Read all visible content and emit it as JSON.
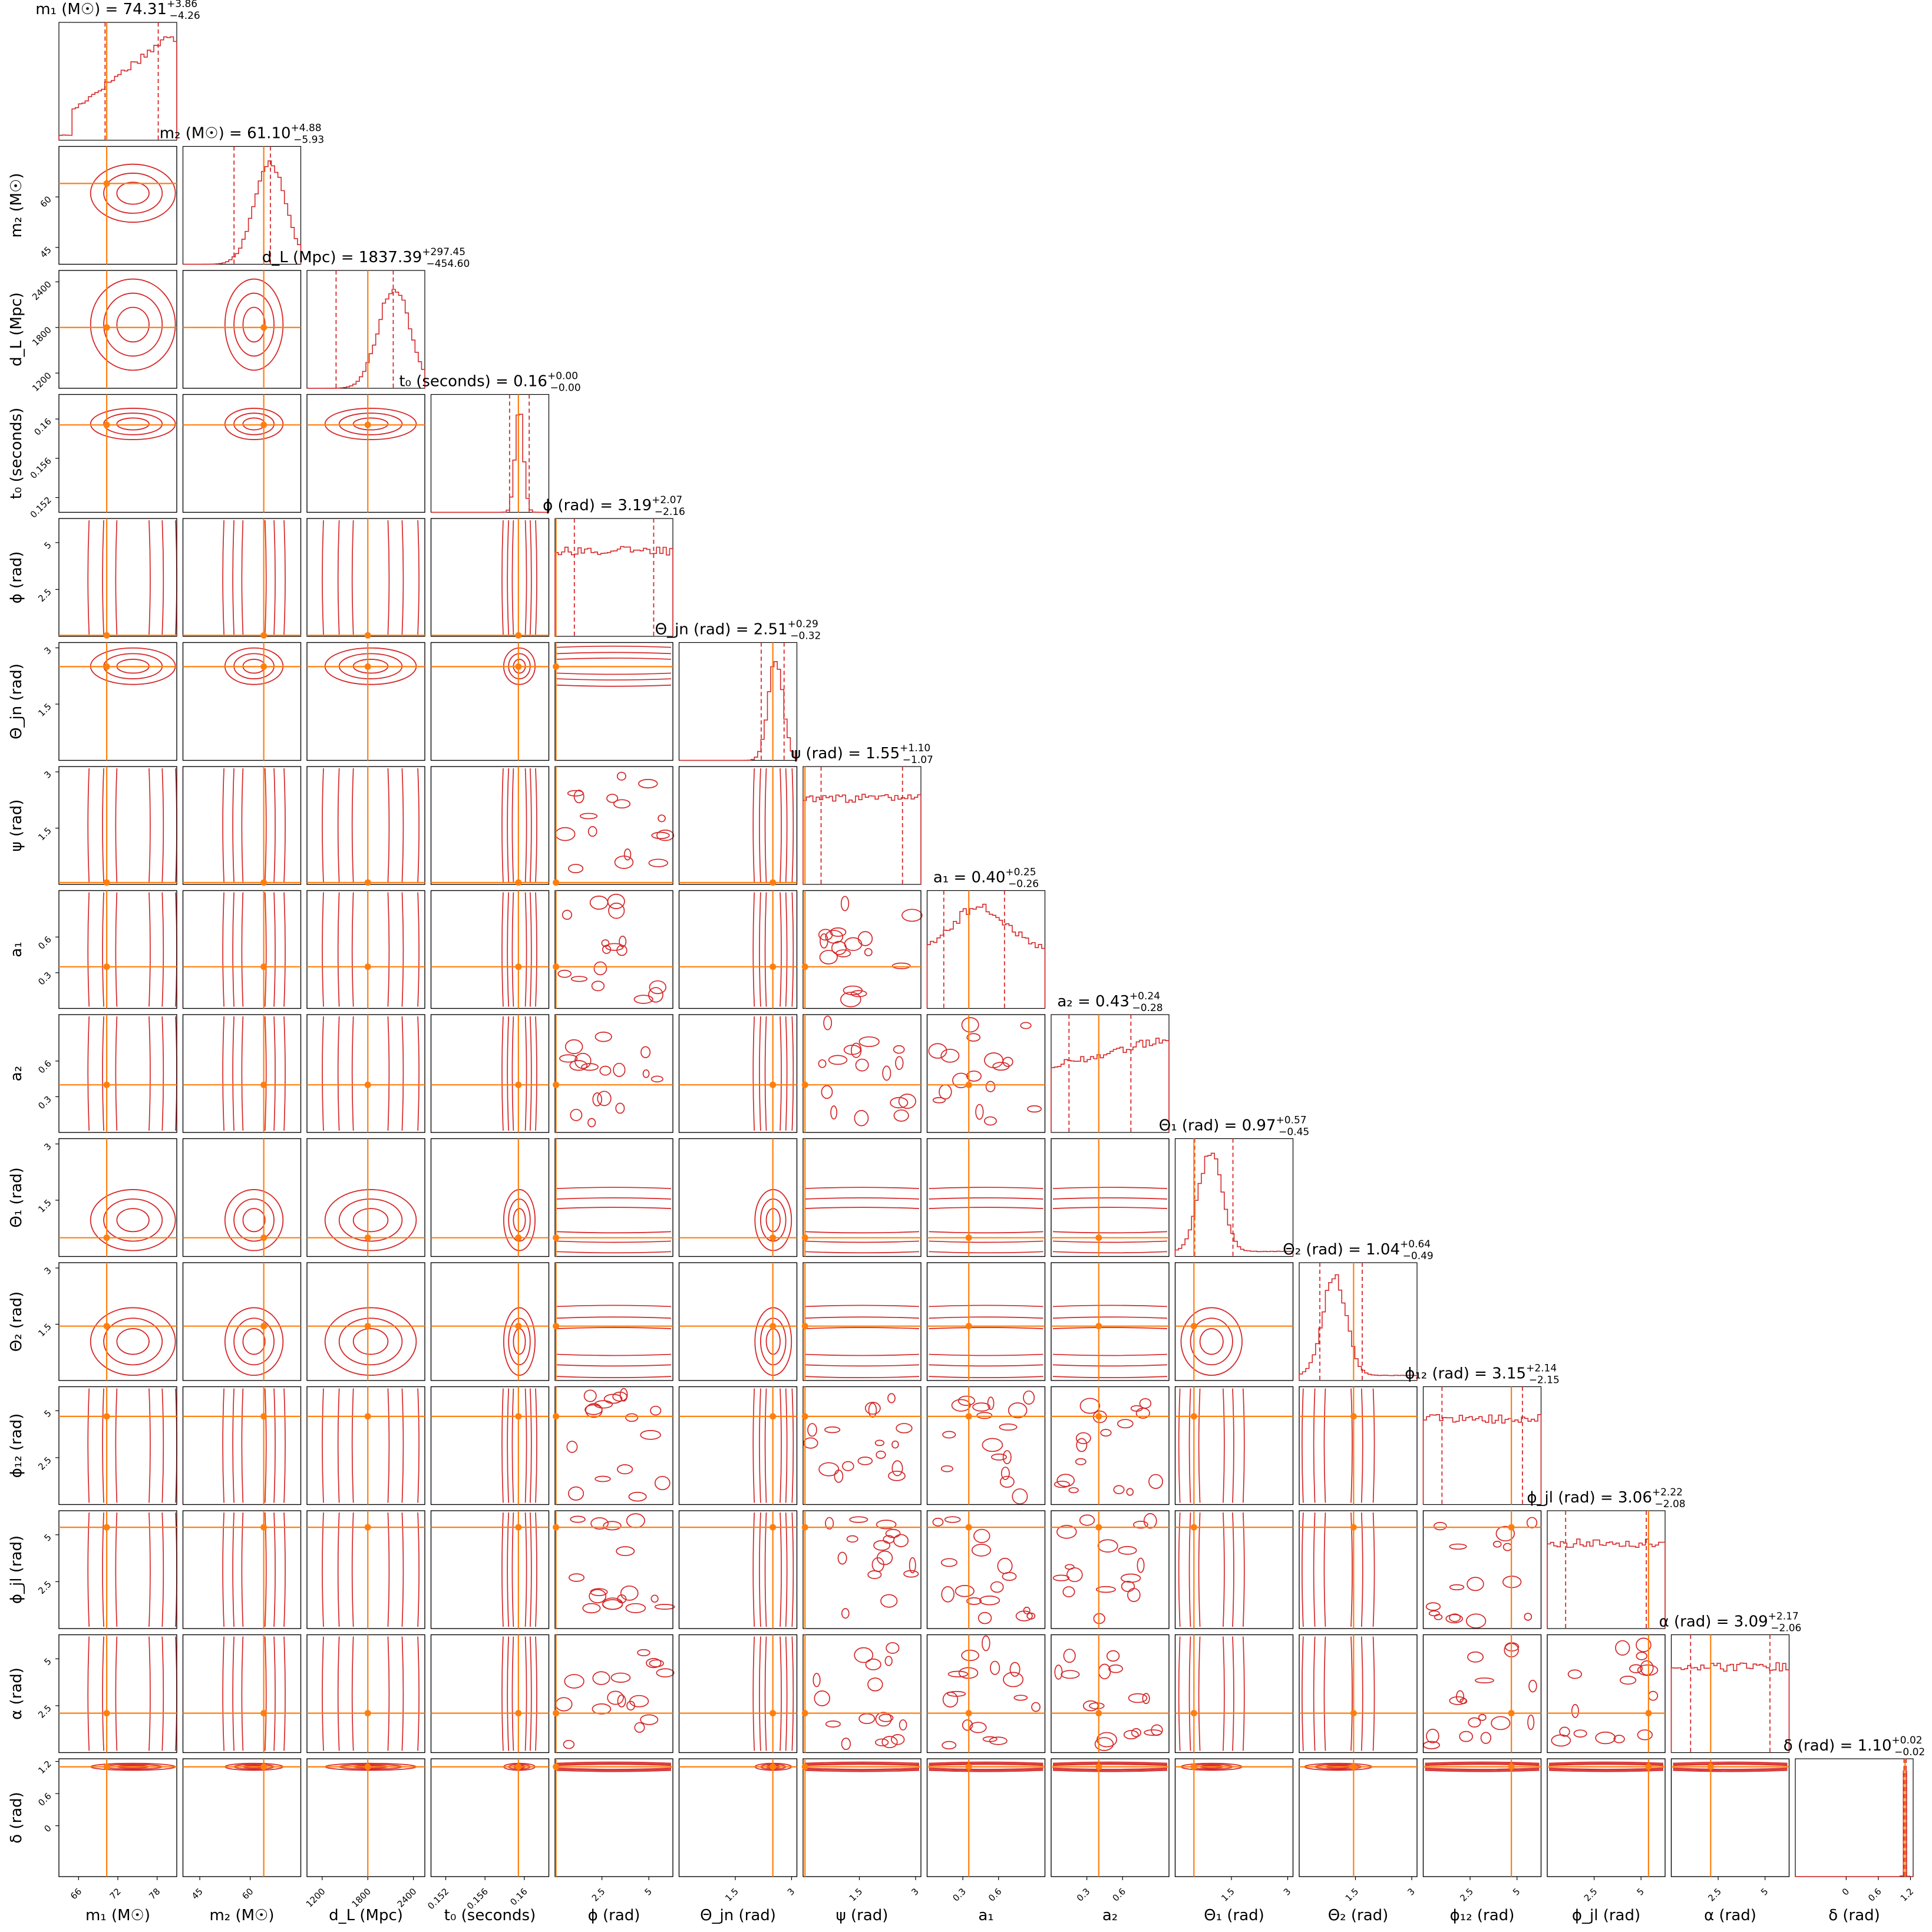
{
  "chart_data": {
    "type": "corner",
    "colors": {
      "posterior": "#d62728",
      "injection": "#ff7f0e",
      "frame": "#000000"
    },
    "parameters": [
      {
        "key": "m1",
        "label": "m₁ (M☉)",
        "title": "m₁ (M☉) = 74.31",
        "plus": "+3.86",
        "minus": "−4.26",
        "range": [
          63,
          81
        ],
        "ticks": [
          66,
          72,
          78
        ],
        "median": 74.31,
        "lo": 70.05,
        "hi": 78.17,
        "injection": 70.3,
        "hist": "rising"
      },
      {
        "key": "m2",
        "label": "m₂ (M☉)",
        "title": "m₂ (M☉) = 61.10",
        "plus": "+4.88",
        "minus": "−5.93",
        "range": [
          40,
          75
        ],
        "ticks": [
          45,
          60
        ],
        "median": 61.1,
        "lo": 55.17,
        "hi": 65.98,
        "injection": 64.0,
        "hist": "peak-right"
      },
      {
        "key": "dL",
        "label": "d_L (Mpc)",
        "title": "d_L (Mpc) = 1837.39",
        "plus": "+297.45",
        "minus": "−454.60",
        "range": [
          1000,
          2550
        ],
        "ticks": [
          1200,
          1800,
          2400
        ],
        "median": 1837.39,
        "lo": 1382.79,
        "hi": 2134.84,
        "injection": 1800,
        "hist": "peak-right"
      },
      {
        "key": "t0",
        "label": "t₀ (seconds)",
        "title": "t₀ (seconds) = 0.16",
        "plus": "+0.00",
        "minus": "−0.00",
        "range": [
          0.1505,
          0.1625
        ],
        "ticks": [
          0.152,
          0.156,
          0.16
        ],
        "median": 0.1595,
        "lo": 0.1585,
        "hi": 0.1605,
        "injection": 0.1594,
        "hist": "narrow"
      },
      {
        "key": "phi",
        "label": "ϕ (rad)",
        "title": "ϕ (rad) = 3.19",
        "plus": "+2.07",
        "minus": "−2.16",
        "range": [
          0,
          6.283
        ],
        "ticks": [
          2.5,
          5.0
        ],
        "median": 3.19,
        "lo": 1.03,
        "hi": 5.26,
        "injection": 0.05,
        "hist": "flat"
      },
      {
        "key": "thetajn",
        "label": "Θ_jn (rad)",
        "title": "Θ_jn (rad) = 2.51",
        "plus": "+0.29",
        "minus": "−0.32",
        "range": [
          0,
          3.1416
        ],
        "ticks": [
          1.5,
          3.0
        ],
        "median": 2.51,
        "lo": 2.19,
        "hi": 2.8,
        "injection": 2.5,
        "hist": "peak-edge"
      },
      {
        "key": "psi",
        "label": "ψ (rad)",
        "title": "ψ (rad) = 1.55",
        "plus": "+1.10",
        "minus": "−1.07",
        "range": [
          0,
          3.1416
        ],
        "ticks": [
          1.5,
          3.0
        ],
        "median": 1.55,
        "lo": 0.48,
        "hi": 2.65,
        "injection": 0.05,
        "hist": "flat"
      },
      {
        "key": "a1",
        "label": "a₁",
        "title": "a₁ = 0.40",
        "plus": "+0.25",
        "minus": "−0.26",
        "range": [
          0,
          0.99
        ],
        "ticks": [
          0.3,
          0.6
        ],
        "median": 0.4,
        "lo": 0.14,
        "hi": 0.65,
        "injection": 0.35,
        "hist": "dome"
      },
      {
        "key": "a2",
        "label": "a₂",
        "title": "a₂ = 0.43",
        "plus": "+0.24",
        "minus": "−0.28",
        "range": [
          0,
          0.99
        ],
        "ticks": [
          0.3,
          0.6
        ],
        "median": 0.43,
        "lo": 0.15,
        "hi": 0.67,
        "injection": 0.4,
        "hist": "rising-slow"
      },
      {
        "key": "theta1",
        "label": "Θ₁ (rad)",
        "title": "Θ₁ (rad) = 0.97",
        "plus": "+0.57",
        "minus": "−0.45",
        "range": [
          0,
          3.1416
        ],
        "ticks": [
          1.5,
          3.0
        ],
        "median": 0.97,
        "lo": 0.52,
        "hi": 1.54,
        "injection": 0.5,
        "hist": "peak-left"
      },
      {
        "key": "theta2",
        "label": "Θ₂ (rad)",
        "title": "Θ₂ (rad) = 1.04",
        "plus": "+0.64",
        "minus": "−0.49",
        "range": [
          0,
          3.1416
        ],
        "ticks": [
          1.5,
          3.0
        ],
        "median": 1.04,
        "lo": 0.55,
        "hi": 1.68,
        "injection": 1.45,
        "hist": "peak-left"
      },
      {
        "key": "phi12",
        "label": "ϕ₁₂ (rad)",
        "title": "ϕ₁₂ (rad) = 3.15",
        "plus": "+2.14",
        "minus": "−2.15",
        "range": [
          0,
          6.283
        ],
        "ticks": [
          2.5,
          5.0
        ],
        "median": 3.15,
        "lo": 1.0,
        "hi": 5.29,
        "injection": 4.7,
        "hist": "flat"
      },
      {
        "key": "phijl",
        "label": "ϕ_jl (rad)",
        "title": "ϕ_jl (rad) = 3.06",
        "plus": "+2.22",
        "minus": "−2.08",
        "range": [
          0,
          6.283
        ],
        "ticks": [
          2.5,
          5.0
        ],
        "median": 3.06,
        "lo": 0.98,
        "hi": 5.28,
        "injection": 5.4,
        "hist": "flat"
      },
      {
        "key": "alpha",
        "label": "α (rad)",
        "title": "α (rad) = 3.09",
        "plus": "+2.17",
        "minus": "−2.06",
        "range": [
          0,
          6.283
        ],
        "ticks": [
          2.5,
          5.0
        ],
        "median": 3.09,
        "lo": 1.03,
        "hi": 5.26,
        "injection": 2.1,
        "hist": "flat"
      },
      {
        "key": "delta",
        "label": "δ (rad)",
        "title": "δ (rad) = 1.10",
        "plus": "+0.02",
        "minus": "−0.02",
        "range": [
          -0.95,
          1.25
        ],
        "ticks": [
          0.0,
          0.6,
          1.2
        ],
        "median": 1.1,
        "lo": 1.08,
        "hi": 1.12,
        "injection": 1.1,
        "hist": "spike"
      }
    ]
  }
}
